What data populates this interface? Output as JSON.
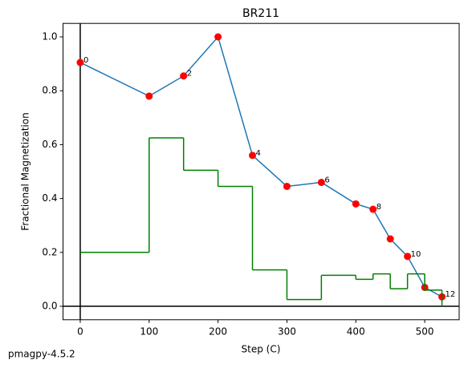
{
  "chart_data": {
    "type": "line",
    "title": "BR211",
    "xlabel": "Step (C)",
    "ylabel": "Fractional Magnetization",
    "footer": "pmagpy-4.5.2",
    "xlim": [
      -25,
      550
    ],
    "xticks": [
      0,
      100,
      200,
      300,
      400,
      500
    ],
    "ylim": [
      -0.05,
      1.05
    ],
    "yticks": [
      {
        "value": 0,
        "label": "0.0"
      },
      0.2,
      0.4,
      0.6,
      0.8,
      {
        "value": 1,
        "label": "1.0"
      }
    ],
    "zero_lines": true,
    "series": [
      {
        "style": "line",
        "color": "#1f77b4",
        "marker_color": "#ff0000",
        "x": [
          0,
          100,
          150,
          200,
          250,
          300,
          350,
          400,
          425,
          450,
          475,
          500,
          525
        ],
        "values": [
          0.905,
          0.78,
          0.855,
          1.0,
          0.56,
          0.445,
          0.46,
          0.38,
          0.36,
          0.25,
          0.185,
          0.07,
          0.035
        ],
        "point_labels": [
          "0",
          null,
          "2",
          null,
          "4",
          null,
          "6",
          null,
          "8",
          null,
          "10",
          null,
          "12"
        ]
      },
      {
        "style": "steps",
        "color": "#008000",
        "x": [
          0,
          100,
          150,
          200,
          250,
          300,
          350,
          400,
          425,
          450,
          475,
          500,
          525
        ],
        "values": [
          0.2,
          0.625,
          0.505,
          0.445,
          0.135,
          0.025,
          0.115,
          0.1,
          0.12,
          0.065,
          0.12,
          0.06,
          0
        ]
      }
    ]
  }
}
